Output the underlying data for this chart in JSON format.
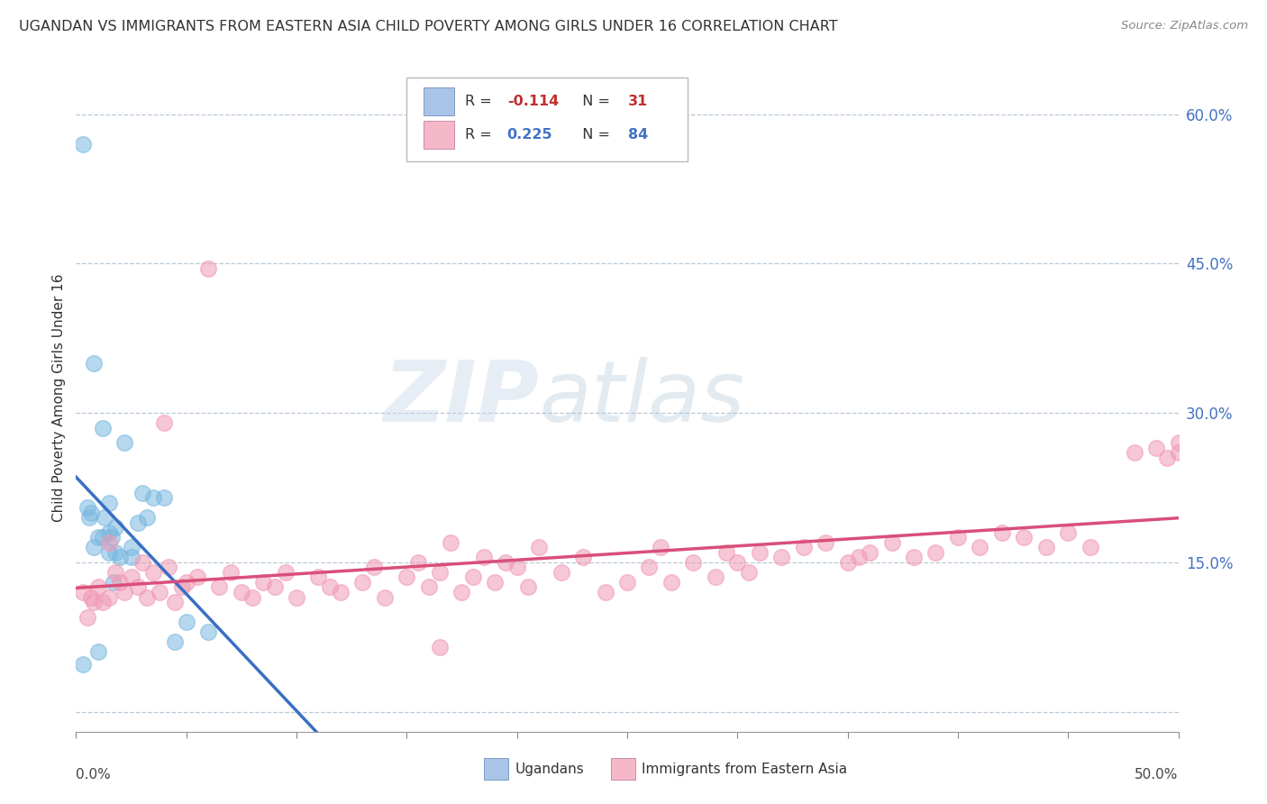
{
  "title": "UGANDAN VS IMMIGRANTS FROM EASTERN ASIA CHILD POVERTY AMONG GIRLS UNDER 16 CORRELATION CHART",
  "source": "Source: ZipAtlas.com",
  "ylabel": "Child Poverty Among Girls Under 16",
  "right_ytick_positions": [
    0.0,
    0.15,
    0.3,
    0.45,
    0.6
  ],
  "right_ytick_labels": [
    "",
    "15.0%",
    "30.0%",
    "45.0%",
    "60.0%"
  ],
  "xmin": 0.0,
  "xmax": 0.5,
  "ymin": -0.02,
  "ymax": 0.65,
  "legend1_color": "#aac4e8",
  "legend2_color": "#f4b8c8",
  "ugandan_color": "#7ab8e0",
  "immigrant_color": "#f09ab5",
  "watermark_zip": "ZIP",
  "watermark_atlas": "atlas",
  "legend_label_ug": "Ugandans",
  "legend_label_im": "Immigrants from Eastern Asia",
  "ugandan_x": [
    0.003,
    0.003,
    0.005,
    0.006,
    0.007,
    0.008,
    0.008,
    0.01,
    0.01,
    0.012,
    0.012,
    0.013,
    0.015,
    0.015,
    0.015,
    0.016,
    0.017,
    0.018,
    0.018,
    0.02,
    0.022,
    0.025,
    0.025,
    0.028,
    0.03,
    0.032,
    0.035,
    0.04,
    0.045,
    0.05,
    0.06
  ],
  "ugandan_y": [
    0.57,
    0.048,
    0.205,
    0.195,
    0.2,
    0.35,
    0.165,
    0.175,
    0.06,
    0.285,
    0.175,
    0.195,
    0.21,
    0.18,
    0.16,
    0.175,
    0.13,
    0.185,
    0.16,
    0.155,
    0.27,
    0.165,
    0.155,
    0.19,
    0.22,
    0.195,
    0.215,
    0.215,
    0.07,
    0.09,
    0.08
  ],
  "immigrant_x": [
    0.003,
    0.005,
    0.007,
    0.008,
    0.01,
    0.012,
    0.015,
    0.015,
    0.018,
    0.02,
    0.022,
    0.025,
    0.028,
    0.03,
    0.032,
    0.035,
    0.038,
    0.04,
    0.042,
    0.045,
    0.048,
    0.05,
    0.055,
    0.06,
    0.065,
    0.07,
    0.075,
    0.08,
    0.085,
    0.09,
    0.095,
    0.1,
    0.11,
    0.115,
    0.12,
    0.13,
    0.135,
    0.14,
    0.15,
    0.155,
    0.16,
    0.165,
    0.17,
    0.175,
    0.18,
    0.185,
    0.19,
    0.195,
    0.2,
    0.205,
    0.21,
    0.22,
    0.23,
    0.24,
    0.25,
    0.26,
    0.265,
    0.27,
    0.28,
    0.29,
    0.295,
    0.3,
    0.305,
    0.31,
    0.32,
    0.33,
    0.34,
    0.35,
    0.355,
    0.36,
    0.37,
    0.38,
    0.39,
    0.4,
    0.41,
    0.42,
    0.43,
    0.44,
    0.45,
    0.46,
    0.48,
    0.49,
    0.495,
    0.5,
    0.5,
    0.165
  ],
  "immigrant_y": [
    0.12,
    0.095,
    0.115,
    0.11,
    0.125,
    0.11,
    0.115,
    0.17,
    0.14,
    0.13,
    0.12,
    0.135,
    0.125,
    0.15,
    0.115,
    0.14,
    0.12,
    0.29,
    0.145,
    0.11,
    0.125,
    0.13,
    0.135,
    0.445,
    0.125,
    0.14,
    0.12,
    0.115,
    0.13,
    0.125,
    0.14,
    0.115,
    0.135,
    0.125,
    0.12,
    0.13,
    0.145,
    0.115,
    0.135,
    0.15,
    0.125,
    0.14,
    0.17,
    0.12,
    0.135,
    0.155,
    0.13,
    0.15,
    0.145,
    0.125,
    0.165,
    0.14,
    0.155,
    0.12,
    0.13,
    0.145,
    0.165,
    0.13,
    0.15,
    0.135,
    0.16,
    0.15,
    0.14,
    0.16,
    0.155,
    0.165,
    0.17,
    0.15,
    0.155,
    0.16,
    0.17,
    0.155,
    0.16,
    0.175,
    0.165,
    0.18,
    0.175,
    0.165,
    0.18,
    0.165,
    0.26,
    0.265,
    0.255,
    0.26,
    0.27,
    0.065
  ]
}
